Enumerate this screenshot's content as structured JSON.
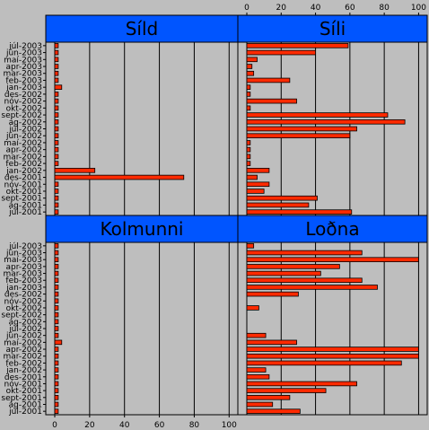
{
  "chart_data": {
    "type": "bar",
    "orientation": "horizontal",
    "layout": "2x2 trellis",
    "categories": [
      "júl-2001",
      "ág-2001",
      "sept-2001",
      "okt-2001",
      "nóv-2001",
      "des-2001",
      "jan-2002",
      "feb-2002",
      "mar-2002",
      "apr-2002",
      "maí-2002",
      "jún-2002",
      "júl-2002",
      "ág-2002",
      "sept-2002",
      "okt-2002",
      "nóv-2002",
      "des-2002",
      "jan-2003",
      "feb-2003",
      "mar-2003",
      "apr-2003",
      "maí-2003",
      "jún-2003",
      "júl-2003"
    ],
    "xlim": [
      0,
      105
    ],
    "xticks": [
      0,
      20,
      40,
      60,
      80,
      100
    ],
    "grid": "vertical lines at ticks",
    "colors": {
      "bar": "#ff2a00",
      "strip": "#0055ff",
      "panel_bg": "#bebebe"
    },
    "panels": [
      {
        "name": "Síld",
        "position": "top-left",
        "values": [
          2,
          2,
          2,
          2,
          2,
          74,
          23,
          2,
          2,
          2,
          2,
          2,
          2,
          2,
          2,
          2,
          2,
          2,
          4,
          2,
          2,
          2,
          2,
          2,
          2
        ]
      },
      {
        "name": "Síli",
        "position": "top-right",
        "values": [
          61,
          36,
          41,
          10,
          13,
          6,
          13,
          2,
          2,
          2,
          2,
          60,
          64,
          92,
          82,
          2,
          29,
          2,
          2,
          25,
          4,
          3,
          6,
          40,
          59
        ]
      },
      {
        "name": "Kolmunni",
        "position": "bottom-left",
        "values": [
          2,
          2,
          2,
          2,
          2,
          2,
          2,
          2,
          2,
          2,
          4,
          2,
          2,
          2,
          2,
          2,
          2,
          2,
          2,
          2,
          2,
          2,
          2,
          2,
          2
        ]
      },
      {
        "name": "Loðna",
        "position": "bottom-right",
        "values": [
          31,
          15,
          25,
          46,
          64,
          13,
          11,
          90,
          100,
          100,
          29,
          11,
          0,
          0,
          0,
          7,
          0,
          30,
          76,
          67,
          43,
          54,
          100,
          67,
          4
        ]
      }
    ]
  }
}
